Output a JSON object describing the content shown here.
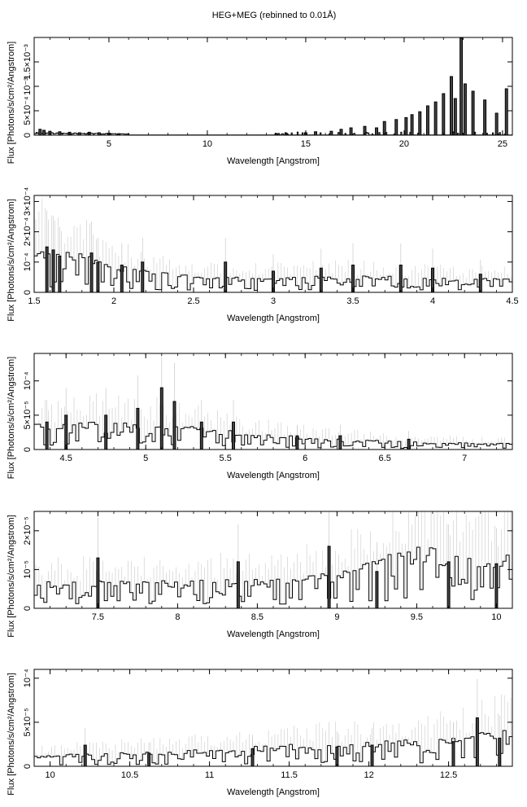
{
  "title": "HEG+MEG (rebinned to 0.01Å)",
  "chart_data": [
    {
      "type": "line",
      "xlabel": "Wavelength [Angstrom]",
      "ylabel": "Flux [Photons/s/cm²/Angstrom]",
      "xlim": [
        1.2,
        25.5
      ],
      "ylim": [
        0,
        0.002
      ],
      "xticks": [
        {
          "v": 5,
          "t": "5"
        },
        {
          "v": 10,
          "t": "10"
        },
        {
          "v": 15,
          "t": "15"
        },
        {
          "v": 20,
          "t": "20"
        },
        {
          "v": 25,
          "t": "25"
        }
      ],
      "yticks": [
        {
          "v": 0,
          "t": "0"
        },
        {
          "v": 0.0005,
          "t": "5×10⁻⁴"
        },
        {
          "v": 0.001,
          "t": "10⁻³"
        },
        {
          "v": 0.0015,
          "t": "1.5×10⁻³"
        }
      ],
      "baseline": [
        [
          1.2,
          1e-05
        ],
        [
          25.5,
          1e-05
        ]
      ],
      "peaks": [
        {
          "x": 1.5,
          "y": 0.00012
        },
        {
          "x": 1.7,
          "y": 0.0001
        },
        {
          "x": 2.0,
          "y": 8e-05
        },
        {
          "x": 2.5,
          "y": 7e-05
        },
        {
          "x": 3.0,
          "y": 6e-05
        },
        {
          "x": 3.5,
          "y": 5e-05
        },
        {
          "x": 4.0,
          "y": 6e-05
        },
        {
          "x": 4.5,
          "y": 5e-05
        },
        {
          "x": 5.0,
          "y": 4e-05
        },
        {
          "x": 5.5,
          "y": 3e-05
        },
        {
          "x": 13.5,
          "y": 3e-05
        },
        {
          "x": 14.0,
          "y": 4e-05
        },
        {
          "x": 15.0,
          "y": 5e-05
        },
        {
          "x": 15.5,
          "y": 7e-05
        },
        {
          "x": 16.3,
          "y": 8e-05
        },
        {
          "x": 16.8,
          "y": 0.00012
        },
        {
          "x": 17.3,
          "y": 0.00015
        },
        {
          "x": 18.0,
          "y": 0.00018
        },
        {
          "x": 18.6,
          "y": 0.00015
        },
        {
          "x": 19.0,
          "y": 0.00028
        },
        {
          "x": 19.6,
          "y": 0.00032
        },
        {
          "x": 20.1,
          "y": 0.00036
        },
        {
          "x": 20.4,
          "y": 0.00042
        },
        {
          "x": 20.8,
          "y": 0.00048
        },
        {
          "x": 21.2,
          "y": 0.0006
        },
        {
          "x": 21.6,
          "y": 0.00068
        },
        {
          "x": 22.0,
          "y": 0.00085
        },
        {
          "x": 22.4,
          "y": 0.0012
        },
        {
          "x": 22.6,
          "y": 0.00075
        },
        {
          "x": 22.9,
          "y": 0.00199
        },
        {
          "x": 23.1,
          "y": 0.00105
        },
        {
          "x": 23.5,
          "y": 0.0009
        },
        {
          "x": 24.1,
          "y": 0.00072
        },
        {
          "x": 24.7,
          "y": 0.00045
        },
        {
          "x": 25.2,
          "y": 0.00095
        }
      ]
    },
    {
      "type": "line",
      "xlabel": "Wavelength [Angstrom]",
      "ylabel": "Flux [Photons/s/cm²/Angstrom]",
      "xlim": [
        1.5,
        4.5
      ],
      "ylim": [
        0,
        0.00032
      ],
      "xticks": [
        {
          "v": 1.5,
          "t": "1.5"
        },
        {
          "v": 2,
          "t": "2"
        },
        {
          "v": 2.5,
          "t": "2.5"
        },
        {
          "v": 3,
          "t": "3"
        },
        {
          "v": 3.5,
          "t": "3.5"
        },
        {
          "v": 4,
          "t": "4"
        },
        {
          "v": 4.5,
          "t": "4.5"
        }
      ],
      "yticks": [
        {
          "v": 0,
          "t": "0"
        },
        {
          "v": 0.0001,
          "t": "10⁻⁴"
        },
        {
          "v": 0.0002,
          "t": "2×10⁻⁴"
        },
        {
          "v": 0.0003,
          "t": "3×10⁻⁴"
        }
      ],
      "envelope": [
        [
          1.5,
          0.00013
        ],
        [
          1.8,
          0.0001
        ],
        [
          2.2,
          6e-05
        ],
        [
          2.6,
          4e-05
        ],
        [
          3.0,
          4e-05
        ],
        [
          3.5,
          4.5e-05
        ],
        [
          4.0,
          4e-05
        ],
        [
          4.5,
          3.5e-05
        ]
      ],
      "peaks": [
        {
          "x": 1.58,
          "y": 0.00015
        },
        {
          "x": 1.62,
          "y": 0.00014
        },
        {
          "x": 1.66,
          "y": 0.00012
        },
        {
          "x": 1.86,
          "y": 0.00013
        },
        {
          "x": 1.9,
          "y": 0.0001
        },
        {
          "x": 2.05,
          "y": 9e-05
        },
        {
          "x": 2.18,
          "y": 0.0001
        },
        {
          "x": 2.7,
          "y": 0.0001
        },
        {
          "x": 3.0,
          "y": 7e-05
        },
        {
          "x": 3.3,
          "y": 8e-05
        },
        {
          "x": 3.5,
          "y": 9e-05
        },
        {
          "x": 3.8,
          "y": 9e-05
        },
        {
          "x": 4.0,
          "y": 8e-05
        },
        {
          "x": 4.3,
          "y": 6e-05
        }
      ]
    },
    {
      "type": "line",
      "xlabel": "Wavelength [Angstrom]",
      "ylabel": "Flux [Photons/s/cm²/Angstrom]",
      "xlim": [
        4.3,
        7.3
      ],
      "ylim": [
        0,
        0.00014
      ],
      "xticks": [
        {
          "v": 4.5,
          "t": "4.5"
        },
        {
          "v": 5,
          "t": "5"
        },
        {
          "v": 5.5,
          "t": "5.5"
        },
        {
          "v": 6,
          "t": "6"
        },
        {
          "v": 6.5,
          "t": "6.5"
        },
        {
          "v": 7,
          "t": "7"
        }
      ],
      "yticks": [
        {
          "v": 0,
          "t": "0"
        },
        {
          "v": 5e-05,
          "t": "5×10⁻⁵"
        },
        {
          "v": 0.0001,
          "t": "10⁻⁴"
        }
      ],
      "envelope": [
        [
          4.3,
          3e-05
        ],
        [
          4.8,
          3.5e-05
        ],
        [
          5.2,
          3e-05
        ],
        [
          5.6,
          2e-05
        ],
        [
          6.0,
          1.5e-05
        ],
        [
          6.5,
          1e-05
        ],
        [
          7.0,
          8e-06
        ],
        [
          7.3,
          7e-06
        ]
      ],
      "peaks": [
        {
          "x": 4.38,
          "y": 4e-05
        },
        {
          "x": 4.5,
          "y": 5e-05
        },
        {
          "x": 4.75,
          "y": 5e-05
        },
        {
          "x": 4.95,
          "y": 6e-05
        },
        {
          "x": 5.1,
          "y": 9e-05
        },
        {
          "x": 5.18,
          "y": 7e-05
        },
        {
          "x": 5.35,
          "y": 4e-05
        },
        {
          "x": 5.55,
          "y": 4e-05
        },
        {
          "x": 5.95,
          "y": 2e-05
        },
        {
          "x": 6.22,
          "y": 2e-05
        },
        {
          "x": 6.65,
          "y": 1.5e-05
        }
      ]
    },
    {
      "type": "line",
      "xlabel": "Wavelength [Angstrom]",
      "ylabel": "Flux [Photons/s/cm²/Angstrom]",
      "xlim": [
        7.1,
        10.1
      ],
      "ylim": [
        0,
        2.5e-05
      ],
      "xticks": [
        {
          "v": 7.5,
          "t": "7.5"
        },
        {
          "v": 8,
          "t": "8"
        },
        {
          "v": 8.5,
          "t": "8.5"
        },
        {
          "v": 9,
          "t": "9"
        },
        {
          "v": 9.5,
          "t": "9.5"
        },
        {
          "v": 10,
          "t": "10"
        }
      ],
      "yticks": [
        {
          "v": 0,
          "t": "0"
        },
        {
          "v": 1e-05,
          "t": "10⁻⁵"
        },
        {
          "v": 2e-05,
          "t": "2×10⁻⁵"
        }
      ],
      "envelope": [
        [
          7.1,
          5.5e-06
        ],
        [
          8.0,
          5.8e-06
        ],
        [
          8.6,
          6e-06
        ],
        [
          9.0,
          7.5e-06
        ],
        [
          9.3,
          1.1e-05
        ],
        [
          9.5,
          1.3e-05
        ],
        [
          9.8,
          1.15e-05
        ],
        [
          10.1,
          1.1e-05
        ]
      ],
      "peaks": [
        {
          "x": 7.5,
          "y": 1.3e-05
        },
        {
          "x": 8.38,
          "y": 1.2e-05
        },
        {
          "x": 8.95,
          "y": 1.6e-05
        },
        {
          "x": 9.25,
          "y": 9.5e-06
        },
        {
          "x": 9.7,
          "y": 1.2e-05
        },
        {
          "x": 10.0,
          "y": 1.15e-05
        }
      ]
    },
    {
      "type": "line",
      "xlabel": "Wavelength [Angstrom]",
      "ylabel": "Flux [Photons/s/cm²/Angstrom]",
      "xlim": [
        9.9,
        12.9
      ],
      "ylim": [
        0,
        0.00011
      ],
      "xticks": [
        {
          "v": 10,
          "t": "10"
        },
        {
          "v": 10.5,
          "t": "10.5"
        },
        {
          "v": 11,
          "t": "11"
        },
        {
          "v": 11.5,
          "t": "11.5"
        },
        {
          "v": 12,
          "t": "12"
        },
        {
          "v": 12.5,
          "t": "12.5"
        }
      ],
      "yticks": [
        {
          "v": 0,
          "t": "0"
        },
        {
          "v": 5e-05,
          "t": "5×10⁻⁵"
        },
        {
          "v": 0.0001,
          "t": "10⁻⁴"
        }
      ],
      "envelope": [
        [
          9.9,
          1e-05
        ],
        [
          10.5,
          1.3e-05
        ],
        [
          11.0,
          1.6e-05
        ],
        [
          11.5,
          2e-05
        ],
        [
          12.0,
          2.2e-05
        ],
        [
          12.5,
          2.7e-05
        ],
        [
          12.9,
          3.5e-05
        ]
      ],
      "peaks": [
        {
          "x": 10.22,
          "y": 2.4e-05
        },
        {
          "x": 10.62,
          "y": 1.5e-05
        },
        {
          "x": 11.27,
          "y": 2e-05
        },
        {
          "x": 11.8,
          "y": 2.2e-05
        },
        {
          "x": 12.02,
          "y": 2.4e-05
        },
        {
          "x": 12.53,
          "y": 2.8e-05
        },
        {
          "x": 12.68,
          "y": 5.5e-05
        },
        {
          "x": 12.82,
          "y": 3.2e-05
        }
      ]
    }
  ]
}
